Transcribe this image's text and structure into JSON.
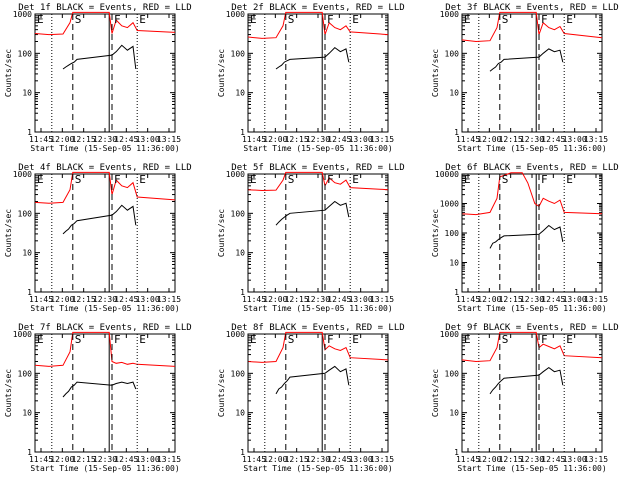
{
  "figure": {
    "legend_suffix": "BLACK = Events, RED = LLD",
    "xlabel": "Start Time (15-Sep-05 11:36:00)",
    "ylabel": "Counts/sec"
  },
  "chart_data": [
    {
      "type": "line",
      "title": "Det 1f BLACK = Events, RED = LLD",
      "xticks": [
        "11:45",
        "12:00",
        "12:15",
        "12:30",
        "12:45",
        "13:00",
        "13:15"
      ],
      "xlim": [
        0,
        100
      ],
      "ylim": [
        1,
        1000
      ],
      "yscale": "log",
      "yticks": [
        "1",
        "10",
        "100",
        "1000"
      ],
      "markers": [
        {
          "label": "E",
          "x": 0,
          "style": "dotted"
        },
        {
          "label": "S",
          "x": 27,
          "style": "dashed"
        },
        {
          "label": "F",
          "x": 55,
          "style": "dashed"
        },
        {
          "label": "E",
          "x": 73,
          "style": "dotted"
        }
      ],
      "extra_lines": [
        {
          "x": 12,
          "style": "dotted"
        },
        {
          "x": 53,
          "style": "solid"
        }
      ],
      "series": [
        {
          "color": "#ff0000",
          "x": [
            0,
            10,
            20,
            25,
            27,
            53,
            55,
            58,
            62,
            66,
            70,
            73,
            100
          ],
          "values": [
            320,
            300,
            310,
            600,
            1100,
            1100,
            320,
            700,
            500,
            450,
            600,
            380,
            340
          ]
        },
        {
          "color": "#000000",
          "x": [
            20,
            22,
            24,
            26,
            28,
            30,
            55,
            58,
            62,
            66,
            70,
            72
          ],
          "values": [
            40,
            45,
            50,
            55,
            60,
            70,
            90,
            110,
            160,
            120,
            150,
            40
          ]
        }
      ]
    },
    {
      "type": "line",
      "title": "Det 2f BLACK = Events, RED = LLD",
      "xticks": [
        "11:45",
        "12:00",
        "12:15",
        "12:30",
        "12:45",
        "13:00",
        "13:15"
      ],
      "xlim": [
        0,
        100
      ],
      "ylim": [
        1,
        1000
      ],
      "yscale": "log",
      "yticks": [
        "1",
        "10",
        "100",
        "1000"
      ],
      "markers": [
        {
          "label": "E",
          "x": 0,
          "style": "dotted"
        },
        {
          "label": "S",
          "x": 27,
          "style": "dashed"
        },
        {
          "label": "F",
          "x": 55,
          "style": "dashed"
        },
        {
          "label": "E",
          "x": 73,
          "style": "dotted"
        }
      ],
      "extra_lines": [
        {
          "x": 12,
          "style": "dotted"
        },
        {
          "x": 53,
          "style": "solid"
        }
      ],
      "series": [
        {
          "color": "#ff0000",
          "x": [
            0,
            10,
            20,
            25,
            27,
            53,
            55,
            58,
            62,
            66,
            70,
            73,
            100
          ],
          "values": [
            260,
            240,
            250,
            500,
            1100,
            1100,
            300,
            600,
            450,
            400,
            500,
            350,
            300
          ]
        },
        {
          "color": "#000000",
          "x": [
            20,
            22,
            24,
            26,
            28,
            30,
            55,
            58,
            62,
            66,
            70,
            72
          ],
          "values": [
            40,
            45,
            50,
            60,
            65,
            70,
            80,
            100,
            140,
            110,
            130,
            60
          ]
        }
      ]
    },
    {
      "type": "line",
      "title": "Det 3f BLACK = Events, RED = LLD",
      "xticks": [
        "11:45",
        "12:00",
        "12:15",
        "12:30",
        "12:45",
        "13:00",
        "13:15"
      ],
      "xlim": [
        0,
        100
      ],
      "ylim": [
        1,
        1000
      ],
      "yscale": "log",
      "yticks": [
        "1",
        "10",
        "100",
        "1000"
      ],
      "markers": [
        {
          "label": "E",
          "x": 0,
          "style": "dotted"
        },
        {
          "label": "S",
          "x": 27,
          "style": "dashed"
        },
        {
          "label": "F",
          "x": 55,
          "style": "dashed"
        },
        {
          "label": "E",
          "x": 73,
          "style": "dotted"
        }
      ],
      "extra_lines": [
        {
          "x": 12,
          "style": "dotted"
        },
        {
          "x": 53,
          "style": "solid"
        }
      ],
      "series": [
        {
          "color": "#ff0000",
          "x": [
            0,
            10,
            20,
            25,
            27,
            53,
            55,
            58,
            62,
            66,
            70,
            73,
            100
          ],
          "values": [
            220,
            200,
            210,
            450,
            1100,
            1100,
            300,
            600,
            450,
            400,
            480,
            320,
            250
          ]
        },
        {
          "color": "#000000",
          "x": [
            20,
            22,
            24,
            26,
            28,
            30,
            55,
            58,
            62,
            66,
            70,
            72
          ],
          "values": [
            35,
            40,
            45,
            55,
            60,
            70,
            80,
            100,
            130,
            110,
            120,
            60
          ]
        }
      ]
    },
    {
      "type": "line",
      "title": "Det 4f BLACK = Events, RED = LLD",
      "xticks": [
        "11:45",
        "12:00",
        "12:15",
        "12:30",
        "12:45",
        "13:00",
        "13:15"
      ],
      "xlim": [
        0,
        100
      ],
      "ylim": [
        1,
        1000
      ],
      "yscale": "log",
      "yticks": [
        "1",
        "10",
        "100",
        "1000"
      ],
      "markers": [
        {
          "label": "E",
          "x": 0,
          "style": "dotted"
        },
        {
          "label": "S",
          "x": 27,
          "style": "dashed"
        },
        {
          "label": "F",
          "x": 55,
          "style": "dashed"
        },
        {
          "label": "E",
          "x": 73,
          "style": "dotted"
        }
      ],
      "extra_lines": [
        {
          "x": 12,
          "style": "dotted"
        },
        {
          "x": 53,
          "style": "solid"
        }
      ],
      "series": [
        {
          "color": "#ff0000",
          "x": [
            0,
            10,
            20,
            25,
            27,
            53,
            55,
            58,
            62,
            66,
            70,
            73,
            100
          ],
          "values": [
            190,
            180,
            190,
            400,
            1100,
            1100,
            300,
            700,
            500,
            450,
            600,
            260,
            220
          ]
        },
        {
          "color": "#000000",
          "x": [
            20,
            22,
            24,
            26,
            28,
            30,
            55,
            58,
            62,
            66,
            70,
            72
          ],
          "values": [
            30,
            35,
            40,
            50,
            55,
            65,
            90,
            110,
            160,
            120,
            150,
            50
          ]
        }
      ]
    },
    {
      "type": "line",
      "title": "Det 5f BLACK = Events, RED = LLD",
      "xticks": [
        "11:45",
        "12:00",
        "12:15",
        "12:30",
        "12:45",
        "13:00",
        "13:15"
      ],
      "xlim": [
        0,
        100
      ],
      "ylim": [
        1,
        1000
      ],
      "yscale": "log",
      "yticks": [
        "1",
        "10",
        "100",
        "1000"
      ],
      "markers": [
        {
          "label": "E",
          "x": 0,
          "style": "dotted"
        },
        {
          "label": "S",
          "x": 27,
          "style": "dashed"
        },
        {
          "label": "F",
          "x": 55,
          "style": "dashed"
        },
        {
          "label": "E",
          "x": 73,
          "style": "dotted"
        }
      ],
      "extra_lines": [
        {
          "x": 12,
          "style": "dotted"
        },
        {
          "x": 53,
          "style": "solid"
        }
      ],
      "series": [
        {
          "color": "#ff0000",
          "x": [
            0,
            10,
            20,
            25,
            27,
            53,
            55,
            58,
            62,
            66,
            70,
            73,
            100
          ],
          "values": [
            400,
            380,
            390,
            700,
            1100,
            1100,
            500,
            800,
            600,
            550,
            700,
            450,
            400
          ]
        },
        {
          "color": "#000000",
          "x": [
            20,
            22,
            24,
            26,
            28,
            30,
            55,
            58,
            62,
            66,
            70,
            72
          ],
          "values": [
            50,
            60,
            70,
            80,
            90,
            100,
            120,
            150,
            200,
            160,
            180,
            80
          ]
        }
      ]
    },
    {
      "type": "line",
      "title": "Det 6f BLACK = Events, RED = LLD",
      "xticks": [
        "11:45",
        "12:00",
        "12:15",
        "12:30",
        "12:45",
        "13:00",
        "13:15"
      ],
      "xlim": [
        0,
        100
      ],
      "ylim": [
        1,
        10000
      ],
      "yscale": "log",
      "yticks": [
        "1",
        "10",
        "100",
        "1000",
        "10000"
      ],
      "markers": [
        {
          "label": "E",
          "x": 0,
          "style": "dotted"
        },
        {
          "label": "S",
          "x": 27,
          "style": "dashed"
        },
        {
          "label": "F",
          "x": 55,
          "style": "dashed"
        },
        {
          "label": "E",
          "x": 73,
          "style": "dotted"
        }
      ],
      "extra_lines": [
        {
          "x": 12,
          "style": "dotted"
        },
        {
          "x": 53,
          "style": "solid"
        }
      ],
      "series": [
        {
          "color": "#ff0000",
          "x": [
            0,
            10,
            20,
            25,
            27,
            35,
            43,
            47,
            52,
            55,
            58,
            62,
            66,
            70,
            73,
            100
          ],
          "values": [
            450,
            420,
            500,
            1500,
            8000,
            11000,
            11000,
            5000,
            1000,
            800,
            1500,
            1200,
            1000,
            1300,
            500,
            450
          ]
        },
        {
          "color": "#000000",
          "x": [
            20,
            22,
            24,
            26,
            28,
            30,
            55,
            58,
            62,
            66,
            70,
            72
          ],
          "values": [
            30,
            45,
            50,
            60,
            70,
            80,
            90,
            120,
            180,
            130,
            160,
            50
          ]
        }
      ]
    },
    {
      "type": "line",
      "title": "Det 7f BLACK = Events, RED = LLD",
      "xticks": [
        "11:45",
        "12:00",
        "12:15",
        "12:30",
        "12:45",
        "13:00",
        "13:15"
      ],
      "xlim": [
        0,
        100
      ],
      "ylim": [
        1,
        1000
      ],
      "yscale": "log",
      "yticks": [
        "1",
        "10",
        "100",
        "1000"
      ],
      "markers": [
        {
          "label": "E",
          "x": 0,
          "style": "dotted"
        },
        {
          "label": "S",
          "x": 27,
          "style": "dashed"
        },
        {
          "label": "F",
          "x": 55,
          "style": "dashed"
        },
        {
          "label": "E",
          "x": 73,
          "style": "dotted"
        }
      ],
      "extra_lines": [
        {
          "x": 12,
          "style": "dotted"
        },
        {
          "x": 53,
          "style": "solid"
        }
      ],
      "series": [
        {
          "color": "#ff0000",
          "x": [
            0,
            10,
            20,
            25,
            27,
            53,
            55,
            58,
            62,
            66,
            70,
            73,
            100
          ],
          "values": [
            160,
            150,
            160,
            350,
            1100,
            1100,
            200,
            180,
            190,
            170,
            180,
            170,
            150
          ]
        },
        {
          "color": "#000000",
          "x": [
            20,
            22,
            24,
            26,
            28,
            30,
            55,
            58,
            62,
            66,
            70,
            72
          ],
          "values": [
            25,
            30,
            35,
            45,
            50,
            60,
            50,
            55,
            60,
            55,
            60,
            40
          ]
        }
      ]
    },
    {
      "type": "line",
      "title": "Det 8f BLACK = Events, RED = LLD",
      "xticks": [
        "11:45",
        "12:00",
        "12:15",
        "12:30",
        "12:45",
        "13:00",
        "13:15"
      ],
      "xlim": [
        0,
        100
      ],
      "ylim": [
        1,
        1000
      ],
      "yscale": "log",
      "yticks": [
        "1",
        "10",
        "100",
        "1000"
      ],
      "markers": [
        {
          "label": "E",
          "x": 0,
          "style": "dotted"
        },
        {
          "label": "S",
          "x": 27,
          "style": "dashed"
        },
        {
          "label": "F",
          "x": 55,
          "style": "dashed"
        },
        {
          "label": "E",
          "x": 73,
          "style": "dotted"
        }
      ],
      "extra_lines": [
        {
          "x": 12,
          "style": "dotted"
        },
        {
          "x": 53,
          "style": "solid"
        }
      ],
      "series": [
        {
          "color": "#ff0000",
          "x": [
            0,
            10,
            20,
            25,
            27,
            53,
            55,
            58,
            62,
            66,
            70,
            73,
            100
          ],
          "values": [
            200,
            190,
            200,
            450,
            1100,
            1100,
            400,
            500,
            420,
            380,
            450,
            250,
            220
          ]
        },
        {
          "color": "#000000",
          "x": [
            20,
            22,
            24,
            26,
            28,
            30,
            55,
            58,
            62,
            66,
            70,
            72
          ],
          "values": [
            30,
            40,
            45,
            55,
            65,
            80,
            100,
            120,
            150,
            110,
            130,
            50
          ]
        }
      ]
    },
    {
      "type": "line",
      "title": "Det 9f BLACK = Events, RED = LLD",
      "xticks": [
        "11:45",
        "12:00",
        "12:15",
        "12:30",
        "12:45",
        "13:00",
        "13:15"
      ],
      "xlim": [
        0,
        100
      ],
      "ylim": [
        1,
        1000
      ],
      "yscale": "log",
      "yticks": [
        "1",
        "10",
        "100",
        "1000"
      ],
      "markers": [
        {
          "label": "E",
          "x": 0,
          "style": "dotted"
        },
        {
          "label": "S",
          "x": 27,
          "style": "dashed"
        },
        {
          "label": "F",
          "x": 55,
          "style": "dashed"
        },
        {
          "label": "E",
          "x": 73,
          "style": "dotted"
        }
      ],
      "extra_lines": [
        {
          "x": 12,
          "style": "dotted"
        },
        {
          "x": 53,
          "style": "solid"
        }
      ],
      "series": [
        {
          "color": "#ff0000",
          "x": [
            0,
            10,
            20,
            25,
            27,
            53,
            55,
            58,
            62,
            66,
            70,
            73,
            100
          ],
          "values": [
            220,
            200,
            210,
            450,
            1100,
            1100,
            450,
            550,
            480,
            420,
            500,
            280,
            250
          ]
        },
        {
          "color": "#000000",
          "x": [
            20,
            22,
            24,
            26,
            28,
            30,
            55,
            58,
            62,
            66,
            70,
            72
          ],
          "values": [
            30,
            38,
            45,
            55,
            65,
            75,
            90,
            110,
            140,
            110,
            120,
            50
          ]
        }
      ]
    }
  ]
}
